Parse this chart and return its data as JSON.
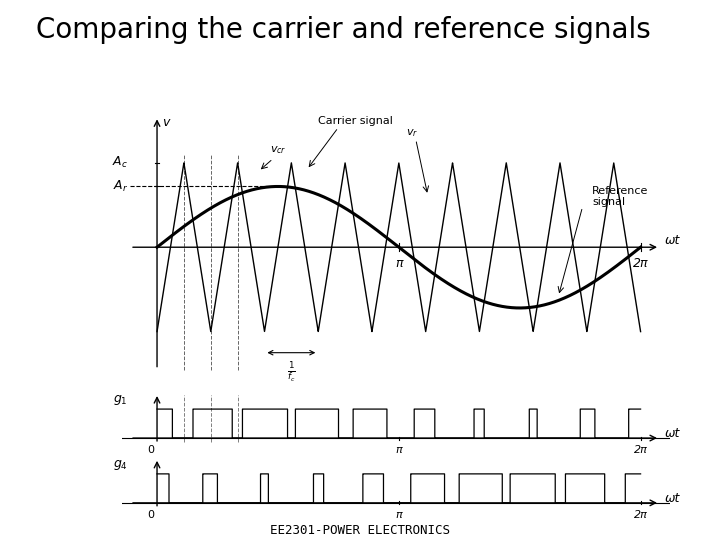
{
  "title": "Comparing the carrier and reference signals",
  "subtitle": "EE2301-POWER ELECTRONICS",
  "background_color": "#ffffff",
  "Ac": 1.0,
  "Ar": 0.72,
  "fc_multiplier": 9,
  "x_max": 6.2831853,
  "carrier_label": "Carrier signal",
  "ref_label": "Reference\nsignal",
  "g1_label": "g",
  "g4_label": "g",
  "omega_t": "ωt",
  "pi_label": "π",
  "two_pi_label": "2π",
  "Ac_label": "A_c",
  "Ar_label": "A_r",
  "v_label": "v",
  "title_fontsize": 20,
  "subtitle_fontsize": 9
}
